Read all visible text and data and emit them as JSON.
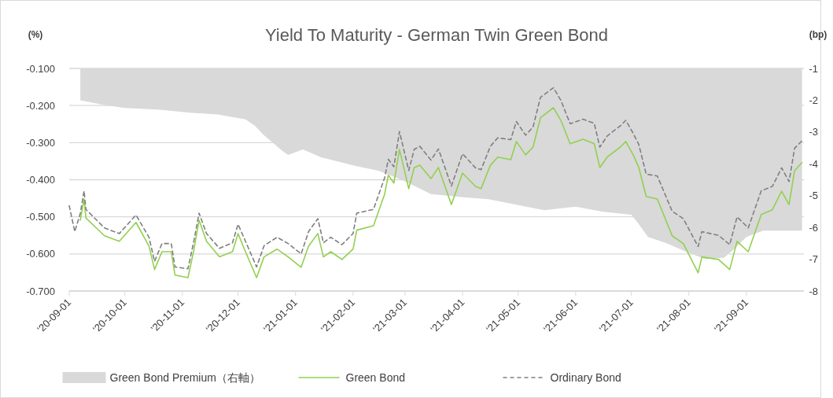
{
  "chart_data": {
    "type": "line",
    "title": "Yield To Maturity - German Twin Green Bond",
    "ylabel": "(%)",
    "y2label": "(bp)",
    "xlim": [
      "2020-09-01",
      "2021-10-02"
    ],
    "xticks": [
      {
        "value": "2020-09-01",
        "label": "'20-09-01"
      },
      {
        "value": "2020-10-01",
        "label": "'20-10-01"
      },
      {
        "value": "2020-11-01",
        "label": "'20-11-01"
      },
      {
        "value": "2020-12-01",
        "label": "'20-12-01"
      },
      {
        "value": "2021-01-01",
        "label": "'21-01-01"
      },
      {
        "value": "2021-02-01",
        "label": "'21-02-01"
      },
      {
        "value": "2021-03-01",
        "label": "'21-03-01"
      },
      {
        "value": "2021-04-01",
        "label": "'21-04-01"
      },
      {
        "value": "2021-05-01",
        "label": "'21-05-01"
      },
      {
        "value": "2021-06-01",
        "label": "'21-06-01"
      },
      {
        "value": "2021-07-01",
        "label": "'21-07-01"
      },
      {
        "value": "2021-08-01",
        "label": "'21-08-01"
      },
      {
        "value": "2021-09-01",
        "label": "'21-09-01"
      }
    ],
    "ylim": [
      -0.7,
      -0.1
    ],
    "yticks": [
      {
        "value": -0.7,
        "label": "-0.700"
      },
      {
        "value": -0.6,
        "label": "-0.600"
      },
      {
        "value": -0.5,
        "label": "-0.500"
      },
      {
        "value": -0.4,
        "label": "-0.400"
      },
      {
        "value": -0.3,
        "label": "-0.300"
      },
      {
        "value": -0.2,
        "label": "-0.200"
      },
      {
        "value": -0.1,
        "label": "-0.100"
      }
    ],
    "y2lim": [
      -8,
      -1
    ],
    "y2ticks": [
      -8,
      -7,
      -6,
      -5,
      -4,
      -3,
      -2,
      -1
    ],
    "grid": "y",
    "legend": "bottom",
    "series": [
      {
        "name": "Green Bond Premium（右軸）",
        "type": "area",
        "axis": "y2",
        "color": "#d9d9d9",
        "x": [
          "2020-09-07",
          "2020-09-20",
          "2020-10-01",
          "2020-10-20",
          "2020-11-05",
          "2020-11-20",
          "2020-12-05",
          "2020-12-10",
          "2020-12-15",
          "2020-12-25",
          "2020-12-28",
          "2021-01-05",
          "2021-01-15",
          "2021-01-20",
          "2021-02-01",
          "2021-02-15",
          "2021-03-01",
          "2021-03-15",
          "2021-04-01",
          "2021-04-15",
          "2021-05-01",
          "2021-05-15",
          "2021-06-01",
          "2021-06-15",
          "2021-07-01",
          "2021-07-05",
          "2021-07-10",
          "2021-07-20",
          "2021-08-01",
          "2021-08-10",
          "2021-08-20",
          "2021-08-25",
          "2021-09-01",
          "2021-09-10",
          "2021-10-01"
        ],
        "values": [
          -2.0,
          -2.15,
          -2.24,
          -2.3,
          -2.39,
          -2.45,
          -2.6,
          -2.8,
          -3.1,
          -3.6,
          -3.72,
          -3.55,
          -3.8,
          -3.87,
          -4.05,
          -4.22,
          -4.55,
          -4.95,
          -5.05,
          -5.11,
          -5.3,
          -5.46,
          -5.35,
          -5.5,
          -5.6,
          -5.9,
          -6.3,
          -6.5,
          -6.8,
          -7.0,
          -6.95,
          -6.7,
          -6.3,
          -6.1,
          -6.1
        ]
      },
      {
        "name": "Green Bond",
        "color": "#92d050",
        "line_style": "solid",
        "x": [
          "2020-09-07",
          "2020-09-09",
          "2020-09-10",
          "2020-09-20",
          "2020-09-28",
          "2020-10-07",
          "2020-10-14",
          "2020-10-17",
          "2020-10-21",
          "2020-10-26",
          "2020-10-28",
          "2020-11-04",
          "2020-11-07",
          "2020-11-10",
          "2020-11-14",
          "2020-11-21",
          "2020-11-28",
          "2020-12-01",
          "2020-12-05",
          "2020-12-11",
          "2020-12-15",
          "2020-12-22",
          "2020-12-28",
          "2021-01-04",
          "2021-01-08",
          "2021-01-13",
          "2021-01-16",
          "2021-01-20",
          "2021-01-26",
          "2021-02-01",
          "2021-02-03",
          "2021-02-12",
          "2021-02-18",
          "2021-02-20",
          "2021-02-23",
          "2021-02-26",
          "2021-03-03",
          "2021-03-06",
          "2021-03-09",
          "2021-03-15",
          "2021-03-19",
          "2021-03-26",
          "2021-04-01",
          "2021-04-08",
          "2021-04-11",
          "2021-04-16",
          "2021-04-20",
          "2021-04-27",
          "2021-04-30",
          "2021-05-05",
          "2021-05-09",
          "2021-05-13",
          "2021-05-20",
          "2021-05-24",
          "2021-05-29",
          "2021-06-05",
          "2021-06-11",
          "2021-06-14",
          "2021-06-18",
          "2021-06-25",
          "2021-06-28",
          "2021-07-02",
          "2021-07-05",
          "2021-07-09",
          "2021-07-15",
          "2021-07-23",
          "2021-07-29",
          "2021-08-06",
          "2021-08-08",
          "2021-08-17",
          "2021-08-23",
          "2021-08-27",
          "2021-09-02",
          "2021-09-09",
          "2021-09-15",
          "2021-09-20",
          "2021-09-24",
          "2021-09-27",
          "2021-10-01"
        ],
        "values": [
          -0.509,
          -0.452,
          -0.503,
          -0.551,
          -0.566,
          -0.515,
          -0.579,
          -0.642,
          -0.594,
          -0.594,
          -0.657,
          -0.664,
          -0.594,
          -0.509,
          -0.566,
          -0.608,
          -0.594,
          -0.545,
          -0.594,
          -0.664,
          -0.608,
          -0.587,
          -0.608,
          -0.636,
          -0.579,
          -0.545,
          -0.608,
          -0.594,
          -0.615,
          -0.587,
          -0.536,
          -0.524,
          -0.439,
          -0.388,
          -0.409,
          -0.318,
          -0.424,
          -0.367,
          -0.361,
          -0.397,
          -0.367,
          -0.467,
          -0.382,
          -0.418,
          -0.424,
          -0.361,
          -0.339,
          -0.346,
          -0.297,
          -0.333,
          -0.312,
          -0.233,
          -0.206,
          -0.24,
          -0.303,
          -0.291,
          -0.303,
          -0.367,
          -0.339,
          -0.312,
          -0.297,
          -0.333,
          -0.367,
          -0.445,
          -0.452,
          -0.551,
          -0.572,
          -0.651,
          -0.608,
          -0.615,
          -0.642,
          -0.566,
          -0.594,
          -0.494,
          -0.481,
          -0.431,
          -0.467,
          -0.375,
          -0.354
        ]
      },
      {
        "name": "Ordinary Bond",
        "color": "#7f7f7f",
        "line_style": "dashed",
        "x": [
          "2020-09-01",
          "2020-09-04",
          "2020-09-07",
          "2020-09-09",
          "2020-09-10",
          "2020-09-20",
          "2020-09-28",
          "2020-10-07",
          "2020-10-14",
          "2020-10-17",
          "2020-10-21",
          "2020-10-26",
          "2020-10-28",
          "2020-11-04",
          "2020-11-07",
          "2020-11-10",
          "2020-11-14",
          "2020-11-21",
          "2020-11-28",
          "2020-12-01",
          "2020-12-05",
          "2020-12-11",
          "2020-12-15",
          "2020-12-22",
          "2020-12-28",
          "2021-01-04",
          "2021-01-08",
          "2021-01-13",
          "2021-01-16",
          "2021-01-20",
          "2021-01-26",
          "2021-02-01",
          "2021-02-03",
          "2021-02-12",
          "2021-02-18",
          "2021-02-20",
          "2021-02-23",
          "2021-02-26",
          "2021-03-03",
          "2021-03-06",
          "2021-03-09",
          "2021-03-15",
          "2021-03-19",
          "2021-03-26",
          "2021-04-01",
          "2021-04-08",
          "2021-04-11",
          "2021-04-16",
          "2021-04-20",
          "2021-04-27",
          "2021-04-30",
          "2021-05-05",
          "2021-05-09",
          "2021-05-13",
          "2021-05-20",
          "2021-05-24",
          "2021-05-29",
          "2021-06-05",
          "2021-06-11",
          "2021-06-14",
          "2021-06-18",
          "2021-06-25",
          "2021-06-28",
          "2021-07-02",
          "2021-07-05",
          "2021-07-09",
          "2021-07-15",
          "2021-07-23",
          "2021-07-29",
          "2021-08-06",
          "2021-08-08",
          "2021-08-17",
          "2021-08-23",
          "2021-08-27",
          "2021-09-02",
          "2021-09-09",
          "2021-09-15",
          "2021-09-20",
          "2021-09-24",
          "2021-09-27",
          "2021-10-01"
        ],
        "values": [
          -0.47,
          -0.54,
          -0.49,
          -0.43,
          -0.48,
          -0.53,
          -0.545,
          -0.495,
          -0.555,
          -0.62,
          -0.572,
          -0.572,
          -0.635,
          -0.64,
          -0.57,
          -0.49,
          -0.545,
          -0.585,
          -0.57,
          -0.52,
          -0.566,
          -0.635,
          -0.578,
          -0.555,
          -0.572,
          -0.6,
          -0.54,
          -0.505,
          -0.57,
          -0.555,
          -0.575,
          -0.545,
          -0.49,
          -0.48,
          -0.395,
          -0.345,
          -0.365,
          -0.27,
          -0.375,
          -0.318,
          -0.31,
          -0.347,
          -0.317,
          -0.417,
          -0.33,
          -0.368,
          -0.373,
          -0.31,
          -0.287,
          -0.292,
          -0.243,
          -0.28,
          -0.258,
          -0.178,
          -0.152,
          -0.186,
          -0.249,
          -0.237,
          -0.248,
          -0.312,
          -0.282,
          -0.255,
          -0.24,
          -0.275,
          -0.305,
          -0.385,
          -0.39,
          -0.485,
          -0.505,
          -0.58,
          -0.54,
          -0.55,
          -0.575,
          -0.5,
          -0.53,
          -0.43,
          -0.418,
          -0.368,
          -0.405,
          -0.315,
          -0.295
        ]
      }
    ]
  }
}
